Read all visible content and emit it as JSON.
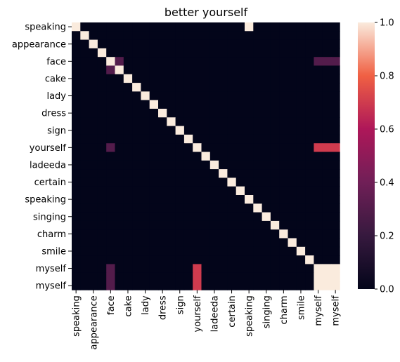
{
  "chart_data": {
    "type": "heatmap",
    "title": "better yourself",
    "x_labels": [
      "speaking",
      "appearance",
      "face",
      "cake",
      "lady",
      "dress",
      "sign",
      "yourself",
      "ladeeda",
      "certain",
      "speaking",
      "singing",
      "charm",
      "smile",
      "myself",
      "myself"
    ],
    "x_label_positions": [
      0,
      2,
      4,
      6,
      8,
      10,
      12,
      14,
      16,
      18,
      20,
      22,
      24,
      26,
      28,
      30
    ],
    "y_labels": [
      "speaking",
      "appearance",
      "face",
      "cake",
      "lady",
      "dress",
      "sign",
      "yourself",
      "ladeeda",
      "certain",
      "speaking",
      "singing",
      "charm",
      "smile",
      "myself",
      "myself"
    ],
    "y_label_positions": [
      0,
      2,
      4,
      6,
      8,
      10,
      12,
      14,
      16,
      18,
      20,
      22,
      24,
      26,
      28,
      30
    ],
    "grid_size": 31,
    "values": [
      [
        1,
        0,
        0,
        0,
        0,
        0,
        0,
        0,
        0,
        0,
        0,
        0,
        0,
        0,
        0,
        0,
        0,
        0,
        0,
        0,
        1,
        0,
        0,
        0,
        0,
        0,
        0,
        0,
        0,
        0,
        0
      ],
      [
        0,
        1,
        0,
        0,
        0,
        0,
        0,
        0,
        0,
        0,
        0,
        0,
        0,
        0,
        0,
        0,
        0,
        0,
        0,
        0,
        0,
        0,
        0,
        0,
        0,
        0,
        0,
        0,
        0,
        0,
        0
      ],
      [
        0,
        0,
        1,
        0,
        0,
        0,
        0,
        0,
        0,
        0,
        0,
        0,
        0,
        0,
        0,
        0,
        0,
        0,
        0,
        0,
        0,
        0,
        0,
        0,
        0,
        0,
        0,
        0,
        0,
        0,
        0
      ],
      [
        0,
        0,
        0,
        1,
        0,
        0,
        0,
        0,
        0,
        0,
        0,
        0,
        0,
        0,
        0,
        0,
        0,
        0,
        0,
        0,
        0,
        0,
        0,
        0,
        0,
        0,
        0,
        0,
        0,
        0,
        0
      ],
      [
        0,
        0,
        0,
        0,
        1,
        0.3,
        0,
        0,
        0,
        0,
        0,
        0,
        0,
        0,
        0,
        0,
        0,
        0,
        0,
        0,
        0,
        0,
        0,
        0,
        0,
        0,
        0,
        0,
        0.3,
        0.3,
        0.3
      ],
      [
        0,
        0,
        0,
        0,
        0.3,
        1,
        0,
        0,
        0,
        0,
        0,
        0,
        0,
        0,
        0,
        0,
        0,
        0,
        0,
        0,
        0,
        0,
        0,
        0,
        0,
        0,
        0,
        0,
        0,
        0,
        0
      ],
      [
        0,
        0,
        0,
        0,
        0,
        0,
        1,
        0,
        0,
        0,
        0,
        0,
        0,
        0,
        0,
        0,
        0,
        0,
        0,
        0,
        0,
        0,
        0,
        0,
        0,
        0,
        0,
        0,
        0,
        0,
        0
      ],
      [
        0,
        0,
        0,
        0,
        0,
        0,
        0,
        1,
        0,
        0,
        0,
        0,
        0,
        0,
        0,
        0,
        0,
        0,
        0,
        0,
        0,
        0,
        0,
        0,
        0,
        0,
        0,
        0,
        0,
        0,
        0
      ],
      [
        0,
        0,
        0,
        0,
        0,
        0,
        0,
        0,
        1,
        0,
        0,
        0,
        0,
        0,
        0,
        0,
        0,
        0,
        0,
        0,
        0,
        0,
        0,
        0,
        0,
        0,
        0,
        0,
        0,
        0,
        0
      ],
      [
        0,
        0,
        0,
        0,
        0,
        0,
        0,
        0,
        0,
        1,
        0,
        0,
        0,
        0,
        0,
        0,
        0,
        0,
        0,
        0,
        0,
        0,
        0,
        0,
        0,
        0,
        0,
        0,
        0,
        0,
        0
      ],
      [
        0,
        0,
        0,
        0,
        0,
        0,
        0,
        0,
        0,
        0,
        1,
        0,
        0,
        0,
        0,
        0,
        0,
        0,
        0,
        0,
        0,
        0,
        0,
        0,
        0,
        0,
        0,
        0,
        0,
        0,
        0
      ],
      [
        0,
        0,
        0,
        0,
        0,
        0,
        0,
        0,
        0,
        0,
        0,
        1,
        0,
        0,
        0,
        0,
        0,
        0,
        0,
        0,
        0,
        0,
        0,
        0,
        0,
        0,
        0,
        0,
        0,
        0,
        0
      ],
      [
        0,
        0,
        0,
        0,
        0,
        0,
        0,
        0,
        0,
        0,
        0,
        0,
        1,
        0,
        0,
        0,
        0,
        0,
        0,
        0,
        0,
        0,
        0,
        0,
        0,
        0,
        0,
        0,
        0,
        0,
        0
      ],
      [
        0,
        0,
        0,
        0,
        0,
        0,
        0,
        0,
        0,
        0,
        0,
        0,
        0,
        1,
        0,
        0,
        0,
        0,
        0,
        0,
        0,
        0,
        0,
        0,
        0,
        0,
        0,
        0,
        0,
        0,
        0
      ],
      [
        0,
        0,
        0,
        0,
        0.3,
        0,
        0,
        0,
        0,
        0,
        0,
        0,
        0,
        0,
        1,
        0,
        0,
        0,
        0,
        0,
        0,
        0,
        0,
        0,
        0,
        0,
        0,
        0,
        0.7,
        0.7,
        0.7
      ],
      [
        0,
        0,
        0,
        0,
        0,
        0,
        0,
        0,
        0,
        0,
        0,
        0,
        0,
        0,
        0,
        1,
        0,
        0,
        0,
        0,
        0,
        0,
        0,
        0,
        0,
        0,
        0,
        0,
        0,
        0,
        0
      ],
      [
        0,
        0,
        0,
        0,
        0,
        0,
        0,
        0,
        0,
        0,
        0,
        0,
        0,
        0,
        0,
        0,
        1,
        0,
        0,
        0,
        0,
        0,
        0,
        0,
        0,
        0,
        0,
        0,
        0,
        0,
        0
      ],
      [
        0,
        0,
        0,
        0,
        0,
        0,
        0,
        0,
        0,
        0,
        0,
        0,
        0,
        0,
        0,
        0,
        0,
        1,
        0,
        0,
        0,
        0,
        0,
        0,
        0,
        0,
        0,
        0,
        0,
        0,
        0
      ],
      [
        0,
        0,
        0,
        0,
        0,
        0,
        0,
        0,
        0,
        0,
        0,
        0,
        0,
        0,
        0,
        0,
        0,
        0,
        1,
        0,
        0,
        0,
        0,
        0,
        0,
        0,
        0,
        0,
        0,
        0,
        0
      ],
      [
        0,
        0,
        0,
        0,
        0,
        0,
        0,
        0,
        0,
        0,
        0,
        0,
        0,
        0,
        0,
        0,
        0,
        0,
        0,
        1,
        0,
        0,
        0,
        0,
        0,
        0,
        0,
        0,
        0,
        0,
        0
      ],
      [
        0,
        0,
        0,
        0,
        0,
        0,
        0,
        0,
        0,
        0,
        0,
        0,
        0,
        0,
        0,
        0,
        0,
        0,
        0,
        0,
        1,
        0,
        0,
        0,
        0,
        0,
        0,
        0,
        0,
        0,
        0
      ],
      [
        0,
        0,
        0,
        0,
        0,
        0,
        0,
        0,
        0,
        0,
        0,
        0,
        0,
        0,
        0,
        0,
        0,
        0,
        0,
        0,
        0,
        1,
        0,
        0,
        0,
        0,
        0,
        0,
        0,
        0,
        0
      ],
      [
        0,
        0,
        0,
        0,
        0,
        0,
        0,
        0,
        0,
        0,
        0,
        0,
        0,
        0,
        0,
        0,
        0,
        0,
        0,
        0,
        0,
        0,
        1,
        0,
        0,
        0,
        0,
        0,
        0,
        0,
        0
      ],
      [
        0,
        0,
        0,
        0,
        0,
        0,
        0,
        0,
        0,
        0,
        0,
        0,
        0,
        0,
        0,
        0,
        0,
        0,
        0,
        0,
        0,
        0,
        0,
        1,
        0,
        0,
        0,
        0,
        0,
        0,
        0
      ],
      [
        0,
        0,
        0,
        0,
        0,
        0,
        0,
        0,
        0,
        0,
        0,
        0,
        0,
        0,
        0,
        0,
        0,
        0,
        0,
        0,
        0,
        0,
        0,
        0,
        1,
        0,
        0,
        0,
        0,
        0,
        0
      ],
      [
        0,
        0,
        0,
        0,
        0,
        0,
        0,
        0,
        0,
        0,
        0,
        0,
        0,
        0,
        0,
        0,
        0,
        0,
        0,
        0,
        0,
        0,
        0,
        0,
        0,
        1,
        0,
        0,
        0,
        0,
        0
      ],
      [
        0,
        0,
        0,
        0,
        0,
        0,
        0,
        0,
        0,
        0,
        0,
        0,
        0,
        0,
        0,
        0,
        0,
        0,
        0,
        0,
        0,
        0,
        0,
        0,
        0,
        0,
        1,
        0,
        0,
        0,
        0
      ],
      [
        0,
        0,
        0,
        0,
        0,
        0,
        0,
        0,
        0,
        0,
        0,
        0,
        0,
        0,
        0,
        0,
        0,
        0,
        0,
        0,
        0,
        0,
        0,
        0,
        0,
        0,
        0,
        1,
        0,
        0,
        0
      ],
      [
        0,
        0,
        0,
        0,
        0.3,
        0,
        0,
        0,
        0,
        0,
        0,
        0,
        0,
        0,
        0.7,
        0,
        0,
        0,
        0,
        0,
        0,
        0,
        0,
        0,
        0,
        0,
        0,
        0,
        1,
        1,
        1
      ],
      [
        0,
        0,
        0,
        0,
        0.3,
        0,
        0,
        0,
        0,
        0,
        0,
        0,
        0,
        0,
        0.7,
        0,
        0,
        0,
        0,
        0,
        0,
        0,
        0,
        0,
        0,
        0,
        0,
        0,
        1,
        1,
        1
      ],
      [
        0,
        0,
        0,
        0,
        0.3,
        0,
        0,
        0,
        0,
        0,
        0,
        0,
        0,
        0,
        0.7,
        0,
        0,
        0,
        0,
        0,
        0,
        0,
        0,
        0,
        0,
        0,
        0,
        0,
        1,
        1,
        1
      ]
    ],
    "colorbar": {
      "range": [
        0,
        1
      ],
      "ticks": [
        0,
        0.2,
        0.4,
        0.6,
        0.8,
        1
      ],
      "tick_labels": [
        "0.0",
        "0.2",
        "0.4",
        "0.6",
        "0.8",
        "1.0"
      ],
      "colormap": "rocket"
    },
    "grid": false
  }
}
